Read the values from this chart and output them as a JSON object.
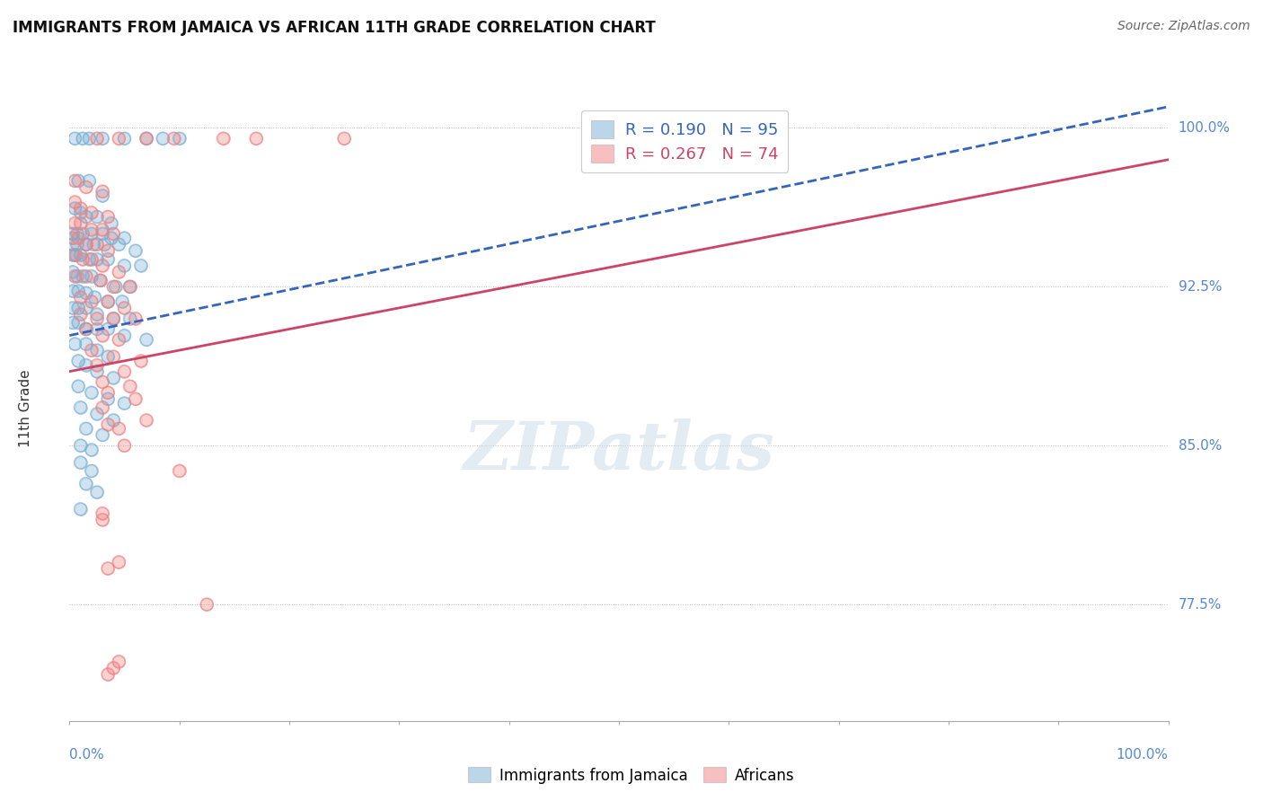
{
  "title": "IMMIGRANTS FROM JAMAICA VS AFRICAN 11TH GRADE CORRELATION CHART",
  "source": "Source: ZipAtlas.com",
  "ylabel": "11th Grade",
  "ytick_values": [
    100.0,
    92.5,
    85.0,
    77.5
  ],
  "ytick_labels": [
    "100.0%",
    "92.5%",
    "85.0%",
    "77.5%"
  ],
  "legend_blue_text": "R = 0.190   N = 95",
  "legend_pink_text": "R = 0.267   N = 74",
  "legend_label_blue": "Immigrants from Jamaica",
  "legend_label_pink": "Africans",
  "blue_color": "#7BAFD4",
  "pink_color": "#F08080",
  "blue_scatter": [
    [
      0.5,
      99.5
    ],
    [
      1.2,
      99.5
    ],
    [
      1.8,
      99.5
    ],
    [
      3.0,
      99.5
    ],
    [
      5.0,
      99.5
    ],
    [
      7.0,
      99.5
    ],
    [
      8.5,
      99.5
    ],
    [
      10.0,
      99.5
    ],
    [
      0.8,
      97.5
    ],
    [
      1.8,
      97.5
    ],
    [
      3.0,
      96.8
    ],
    [
      0.5,
      96.2
    ],
    [
      1.0,
      96.0
    ],
    [
      1.5,
      95.8
    ],
    [
      2.5,
      95.8
    ],
    [
      3.8,
      95.5
    ],
    [
      0.3,
      95.0
    ],
    [
      0.7,
      95.0
    ],
    [
      1.2,
      95.0
    ],
    [
      2.0,
      95.0
    ],
    [
      3.0,
      95.0
    ],
    [
      3.8,
      94.8
    ],
    [
      5.0,
      94.8
    ],
    [
      0.3,
      94.5
    ],
    [
      0.7,
      94.5
    ],
    [
      1.5,
      94.5
    ],
    [
      2.2,
      94.5
    ],
    [
      3.2,
      94.5
    ],
    [
      4.5,
      94.5
    ],
    [
      6.0,
      94.2
    ],
    [
      0.3,
      94.0
    ],
    [
      0.6,
      94.0
    ],
    [
      1.0,
      94.0
    ],
    [
      1.8,
      93.8
    ],
    [
      2.5,
      93.8
    ],
    [
      3.5,
      93.8
    ],
    [
      5.0,
      93.5
    ],
    [
      6.5,
      93.5
    ],
    [
      0.3,
      93.2
    ],
    [
      0.7,
      93.0
    ],
    [
      1.2,
      93.0
    ],
    [
      2.0,
      93.0
    ],
    [
      2.8,
      92.8
    ],
    [
      4.2,
      92.5
    ],
    [
      5.5,
      92.5
    ],
    [
      0.3,
      92.3
    ],
    [
      0.8,
      92.3
    ],
    [
      1.5,
      92.2
    ],
    [
      2.3,
      92.0
    ],
    [
      3.5,
      91.8
    ],
    [
      4.8,
      91.8
    ],
    [
      0.3,
      91.5
    ],
    [
      0.8,
      91.5
    ],
    [
      1.5,
      91.5
    ],
    [
      2.5,
      91.2
    ],
    [
      4.0,
      91.0
    ],
    [
      5.5,
      91.0
    ],
    [
      0.3,
      90.8
    ],
    [
      0.8,
      90.8
    ],
    [
      1.5,
      90.5
    ],
    [
      2.5,
      90.5
    ],
    [
      3.5,
      90.5
    ],
    [
      5.0,
      90.2
    ],
    [
      7.0,
      90.0
    ],
    [
      0.5,
      89.8
    ],
    [
      1.5,
      89.8
    ],
    [
      2.5,
      89.5
    ],
    [
      3.5,
      89.2
    ],
    [
      0.8,
      89.0
    ],
    [
      1.5,
      88.8
    ],
    [
      2.5,
      88.5
    ],
    [
      4.0,
      88.2
    ],
    [
      0.8,
      87.8
    ],
    [
      2.0,
      87.5
    ],
    [
      3.5,
      87.2
    ],
    [
      5.0,
      87.0
    ],
    [
      1.0,
      86.8
    ],
    [
      2.5,
      86.5
    ],
    [
      4.0,
      86.2
    ],
    [
      1.5,
      85.8
    ],
    [
      3.0,
      85.5
    ],
    [
      1.0,
      85.0
    ],
    [
      2.0,
      84.8
    ],
    [
      1.0,
      84.2
    ],
    [
      2.0,
      83.8
    ],
    [
      1.5,
      83.2
    ],
    [
      2.5,
      82.8
    ],
    [
      1.0,
      82.0
    ]
  ],
  "pink_scatter": [
    [
      2.5,
      99.5
    ],
    [
      4.5,
      99.5
    ],
    [
      7.0,
      99.5
    ],
    [
      9.5,
      99.5
    ],
    [
      14.0,
      99.5
    ],
    [
      17.0,
      99.5
    ],
    [
      25.0,
      99.5
    ],
    [
      0.5,
      97.5
    ],
    [
      1.5,
      97.2
    ],
    [
      3.0,
      97.0
    ],
    [
      0.5,
      96.5
    ],
    [
      1.0,
      96.2
    ],
    [
      2.0,
      96.0
    ],
    [
      3.5,
      95.8
    ],
    [
      0.5,
      95.5
    ],
    [
      1.0,
      95.5
    ],
    [
      2.0,
      95.2
    ],
    [
      3.0,
      95.2
    ],
    [
      4.0,
      95.0
    ],
    [
      0.3,
      94.8
    ],
    [
      0.8,
      94.8
    ],
    [
      1.5,
      94.5
    ],
    [
      2.5,
      94.5
    ],
    [
      3.5,
      94.2
    ],
    [
      0.5,
      94.0
    ],
    [
      1.2,
      93.8
    ],
    [
      2.0,
      93.8
    ],
    [
      3.0,
      93.5
    ],
    [
      4.5,
      93.2
    ],
    [
      0.5,
      93.0
    ],
    [
      1.5,
      93.0
    ],
    [
      2.8,
      92.8
    ],
    [
      4.0,
      92.5
    ],
    [
      5.5,
      92.5
    ],
    [
      1.0,
      92.0
    ],
    [
      2.0,
      91.8
    ],
    [
      3.5,
      91.8
    ],
    [
      5.0,
      91.5
    ],
    [
      1.0,
      91.2
    ],
    [
      2.5,
      91.0
    ],
    [
      4.0,
      91.0
    ],
    [
      6.0,
      91.0
    ],
    [
      1.5,
      90.5
    ],
    [
      3.0,
      90.2
    ],
    [
      4.5,
      90.0
    ],
    [
      2.0,
      89.5
    ],
    [
      4.0,
      89.2
    ],
    [
      6.5,
      89.0
    ],
    [
      2.5,
      88.8
    ],
    [
      5.0,
      88.5
    ],
    [
      3.0,
      88.0
    ],
    [
      5.5,
      87.8
    ],
    [
      3.5,
      87.5
    ],
    [
      6.0,
      87.2
    ],
    [
      3.0,
      86.8
    ],
    [
      7.0,
      86.2
    ],
    [
      3.5,
      86.0
    ],
    [
      4.5,
      85.8
    ],
    [
      5.0,
      85.0
    ],
    [
      10.0,
      83.8
    ],
    [
      3.0,
      81.8
    ],
    [
      3.0,
      81.5
    ],
    [
      4.5,
      79.5
    ],
    [
      3.5,
      79.2
    ],
    [
      12.5,
      77.5
    ],
    [
      4.5,
      74.8
    ],
    [
      4.0,
      74.5
    ],
    [
      3.5,
      74.2
    ]
  ],
  "blue_line": [
    [
      0.0,
      90.2
    ],
    [
      100.0,
      101.0
    ]
  ],
  "pink_line": [
    [
      0.0,
      88.5
    ],
    [
      100.0,
      98.5
    ]
  ],
  "watermark": "ZIPatlas",
  "xmin": 0.0,
  "xmax": 100.0,
  "ymin": 72.0,
  "ymax": 101.5
}
